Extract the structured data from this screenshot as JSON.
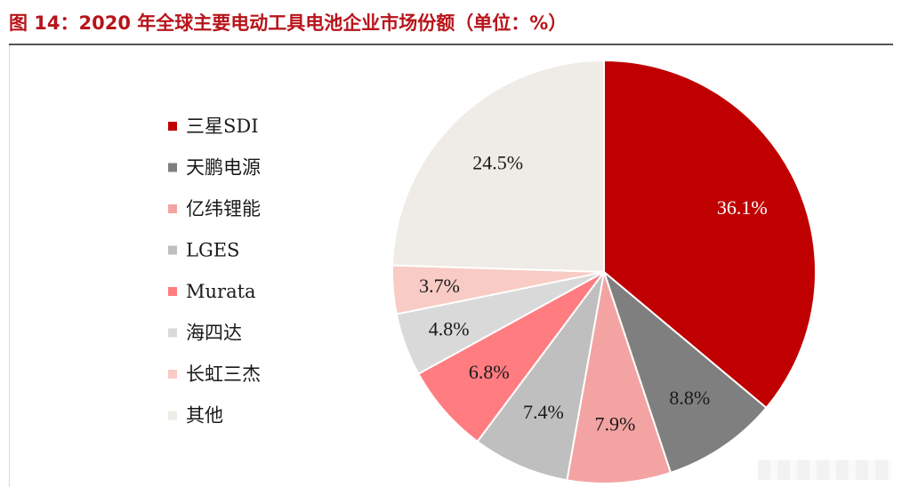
{
  "page": {
    "title": "图 14：2020 年全球主要电动工具电池企业市场份额（单位：%）"
  },
  "chart_data": {
    "type": "pie",
    "title": "",
    "unit": "%",
    "slices": [
      {
        "name": "三星SDI",
        "value": 36.1,
        "label": "36.1%",
        "color": "#c00000",
        "label_color": "#ffffff"
      },
      {
        "name": "天鹏电源",
        "value": 8.8,
        "label": "8.8%",
        "color": "#7f7f7f",
        "label_color": "#1a1a1a"
      },
      {
        "name": "亿纬锂能",
        "value": 7.9,
        "label": "7.9%",
        "color": "#f4a3a3",
        "label_color": "#1a1a1a"
      },
      {
        "name": "LGES",
        "value": 7.4,
        "label": "7.4%",
        "color": "#bfbfbf",
        "label_color": "#1a1a1a"
      },
      {
        "name": "Murata",
        "value": 6.8,
        "label": "6.8%",
        "color": "#ff7c80",
        "label_color": "#1a1a1a"
      },
      {
        "name": "海四达",
        "value": 4.8,
        "label": "4.8%",
        "color": "#d9d9d9",
        "label_color": "#1a1a1a"
      },
      {
        "name": "长虹三杰",
        "value": 3.7,
        "label": "3.7%",
        "color": "#f8cbc4",
        "label_color": "#1a1a1a"
      },
      {
        "name": "其他",
        "value": 24.5,
        "label": "24.5%",
        "color": "#efebe6",
        "label_color": "#1a1a1a"
      }
    ],
    "start_angle_deg": 0,
    "direction": "clockwise",
    "legend_position": "left"
  }
}
